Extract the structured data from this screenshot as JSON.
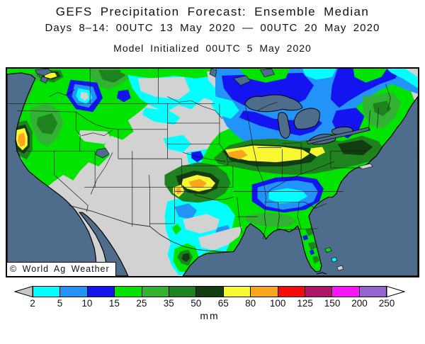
{
  "header": {
    "title": "GEFS Precipitation Forecast: Ensemble Median",
    "subtitle": "Days 8–14: 00UTC 13 May 2020 — 00UTC 20 May 2020",
    "model_init": "Model Initialized 00UTC 5 May 2020"
  },
  "map": {
    "watermark": "© World Ag Weather",
    "ocean_color": "#4e6d8c",
    "land_dry_color": "#d2d2d2"
  },
  "colorbar": {
    "unit_label": "mm",
    "tick_labels": [
      "2",
      "5",
      "10",
      "15",
      "25",
      "35",
      "50",
      "65",
      "80",
      "100",
      "125",
      "150",
      "200",
      "250"
    ],
    "segment_colors": [
      "#00ffff",
      "#2293f7",
      "#1414f0",
      "#00e400",
      "#32b232",
      "#1e821e",
      "#123c12",
      "#f8f832",
      "#faa51e",
      "#fa0a0a",
      "#b01468",
      "#fa14fa",
      "#9664d2"
    ],
    "below_min_arrow_color": "#c8c8c8",
    "above_max_arrow_color": "#ffffff"
  },
  "chart_data": {
    "type": "heatmap",
    "title": "GEFS Precipitation Forecast: Ensemble Median",
    "subtitle": "Days 8–14: 00UTC 13 May 2020 — 00UTC 20 May 2020",
    "model_initialized": "Model Initialized 00UTC 5 May 2020",
    "units": "mm",
    "contour_levels_mm": [
      2,
      5,
      10,
      15,
      25,
      35,
      50,
      65,
      80,
      100,
      125,
      150,
      200,
      250
    ],
    "palette": [
      "#00ffff",
      "#2293f7",
      "#1414f0",
      "#00e400",
      "#32b232",
      "#1e821e",
      "#123c12",
      "#f8f832",
      "#faa51e",
      "#fa0a0a",
      "#b01468",
      "#fa14fa",
      "#9664d2"
    ],
    "legend_position": "bottom",
    "region": "Contiguous United States"
  }
}
